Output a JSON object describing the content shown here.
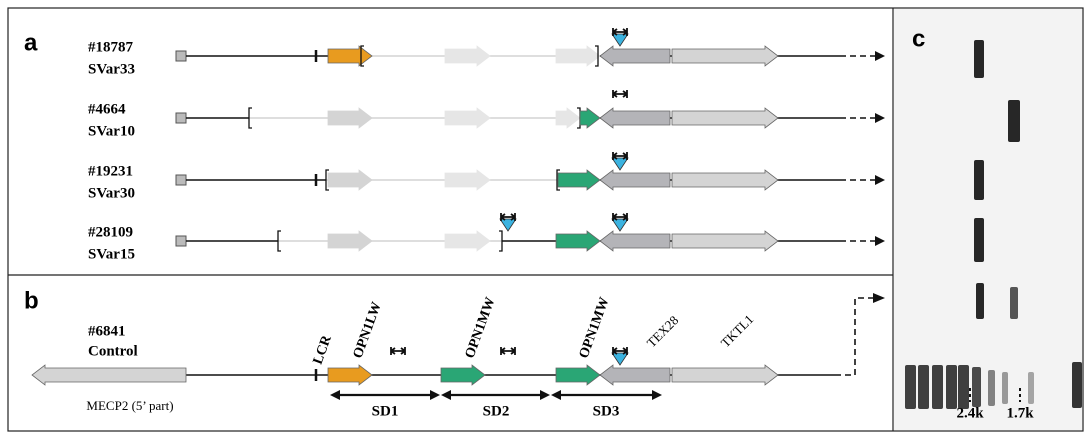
{
  "panels": {
    "a": "a",
    "b": "b",
    "c": "c"
  },
  "samples": [
    {
      "id": "#18787",
      "variant": "SVar33"
    },
    {
      "id": "#4664",
      "variant": "SVar10"
    },
    {
      "id": "#19231",
      "variant": "SVar30"
    },
    {
      "id": "#28109",
      "variant": "SVar15"
    }
  ],
  "control": {
    "id": "#6841",
    "label": "Control"
  },
  "genes": {
    "lcr": "LCR",
    "opn1lw": "OPN1LW",
    "opn1mw_1": "OPN1MW",
    "opn1mw_2": "OPN1MW",
    "tex28": "TEX28",
    "tktl1": "TKTL1",
    "mecp2": "MECP2 (5’ part)"
  },
  "segmental_duplications": [
    "SD1",
    "SD2",
    "SD3"
  ],
  "gel_markers": [
    "2.4k",
    "1.7k"
  ]
}
